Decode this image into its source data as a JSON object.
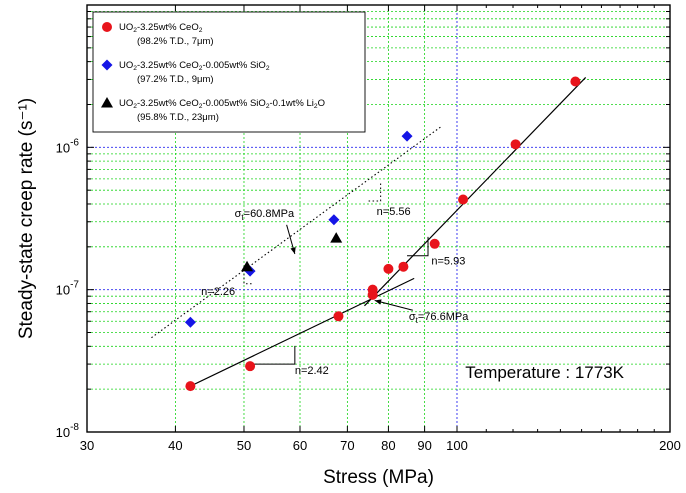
{
  "chart_data": {
    "type": "scatter",
    "title": "",
    "xlabel": "Stress (MPa)",
    "ylabel": "Steady-state creep rate (s⁻¹)",
    "x_scale": "log",
    "y_scale": "log",
    "xlim": [
      30,
      200
    ],
    "ylim": [
      1e-08,
      1e-05
    ],
    "x_tick_labels": [
      "30",
      "40",
      "50",
      "60",
      "70",
      "80",
      "90",
      "100",
      "200"
    ],
    "y_tick_labels": [
      {
        "base": "10",
        "exp": "-8"
      },
      {
        "base": "10",
        "exp": "-7"
      },
      {
        "base": "10",
        "exp": "-6"
      }
    ],
    "grid": "on",
    "legend_position": "top-left",
    "legend": [
      {
        "name": "UO₂-3.25wt% CeO₂",
        "detail": "(98.2% T.D., 7μm)",
        "marker": "circle",
        "color": "#e8141b"
      },
      {
        "name": "UO₂-3.25wt% CeO₂-0.005wt% SiO₂",
        "detail": "(97.2% T.D., 9μm)",
        "marker": "diamond",
        "color": "#1515e6"
      },
      {
        "name": "UO₂-3.25wt% CeO₂-0.005wt% SiO₂-0.1wt% Li₂O",
        "detail": "(95.8% T.D., 23μm)",
        "marker": "triangle",
        "color": "#000000"
      }
    ],
    "series": [
      {
        "name": "UO₂-3.25wt% CeO₂",
        "marker": "circle",
        "color": "#e8141b",
        "points": [
          [
            42,
            2.1e-08
          ],
          [
            51,
            2.9e-08
          ],
          [
            68,
            6.5e-08
          ],
          [
            76,
            9.2e-08
          ],
          [
            76,
            1e-07
          ],
          [
            80,
            1.4e-07
          ],
          [
            84,
            1.45e-07
          ],
          [
            93,
            2.1e-07
          ],
          [
            102,
            4.3e-07
          ],
          [
            121,
            1.05e-06
          ],
          [
            147,
            2.9e-06
          ]
        ]
      },
      {
        "name": "UO₂-3.25wt% CeO₂-0.005wt% SiO₂",
        "marker": "diamond",
        "color": "#1515e6",
        "points": [
          [
            42,
            5.9e-08
          ],
          [
            51,
            1.35e-07
          ],
          [
            67,
            3.1e-07
          ],
          [
            85,
            1.2e-06
          ]
        ]
      },
      {
        "name": "UO₂-3.25wt% CeO₂-0.005wt% SiO₂-0.1wt% Li₂O",
        "marker": "triangle",
        "color": "#000000",
        "points": [
          [
            50.5,
            1.45e-07
          ],
          [
            67.5,
            2.3e-07
          ]
        ]
      }
    ],
    "fit_lines": [
      {
        "style": "solid",
        "from": [
          42,
          2.1e-08
        ],
        "to": [
          87,
          1.2e-07
        ]
      },
      {
        "style": "solid",
        "from": [
          74,
          7.7e-08
        ],
        "to": [
          152,
          3.1e-06
        ]
      },
      {
        "style": "dotted",
        "from": [
          37,
          4.6e-08
        ],
        "to": [
          95,
          1.4e-06
        ]
      }
    ],
    "slope_triangles": [
      {
        "style": "solid",
        "vertices": [
          [
            51,
            3e-08
          ],
          [
            59,
            3e-08
          ],
          [
            59,
            4.03e-08
          ]
        ]
      },
      {
        "style": "solid",
        "vertices": [
          [
            85,
            1.73e-07
          ],
          [
            91,
            1.73e-07
          ],
          [
            91,
            2.35e-07
          ]
        ]
      },
      {
        "style": "dotted",
        "vertices": [
          [
            50,
            1.47e-07
          ],
          [
            50,
            1.1e-07
          ],
          [
            51.5,
            1.1e-07
          ]
        ]
      },
      {
        "style": "dotted",
        "vertices": [
          [
            75,
            4.2e-07
          ],
          [
            78,
            4.2e-07
          ],
          [
            78,
            5.6e-07
          ]
        ]
      }
    ],
    "annotations": [
      {
        "id": "n1",
        "text": "n=2.42",
        "at": [
          59,
          2.55e-08
        ]
      },
      {
        "id": "n2",
        "text": "n=5.93",
        "at": [
          92,
          1.5e-07
        ]
      },
      {
        "id": "n3",
        "text": "n=2.26",
        "at": [
          43.5,
          9.2e-08
        ]
      },
      {
        "id": "n4",
        "text": "n=5.56",
        "at": [
          77,
          3.35e-07
        ]
      },
      {
        "id": "sigma1",
        "sym": "σ",
        "sub": "t",
        "rest": "=60.8MPa",
        "at": [
          48.5,
          3.25e-07
        ],
        "arrow_to": [
          59,
          1.78e-07
        ]
      },
      {
        "id": "sigma2",
        "sym": "σ",
        "sub": "t",
        "rest": "=76.6MPa",
        "at": [
          85.5,
          6.1e-08
        ],
        "arrow_to": [
          76.5,
          8.4e-08
        ]
      },
      {
        "id": "temp",
        "text": "Temperature : 1773K",
        "at": [
          133,
          2.4e-08
        ]
      }
    ]
  }
}
